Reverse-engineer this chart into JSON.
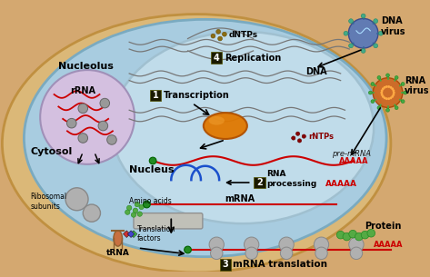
{
  "background_color": "#d4a870",
  "cell_outer_color": "#e8c88a",
  "cell_blue_color": "#a8cce0",
  "nucleus_color": "#b8d8e8",
  "nucleolus_color": "#d0c0e0",
  "dna_color": "#555555",
  "rna_color": "#cc0000",
  "mrna_color": "#cc0000",
  "ribosome_color": "#aaaaaa",
  "rnap_color": "#e07800",
  "green_dot_color": "#228b22",
  "virus_dna_color": "#4466aa",
  "virus_rna_color": "#cc6600",
  "labels": {
    "nucleolus": "Nucleolus",
    "nucleus": "Nucleus",
    "cytosol": "Cytosol",
    "rRNA": "rRNA",
    "ribosomal_subunits": "Ribosomal\nsubunits",
    "amino_acids": "Amino acids",
    "tRNA": "tRNA",
    "translation_factors": "Translation\nfactors",
    "mRNA": "mRNA",
    "dNTPs": "dNTPs",
    "rNTPs": "rNTPs",
    "DNA": "DNA",
    "pre_mRNA": "pre-mRNA",
    "AAAAA": "AAAAA",
    "protein": "Protein",
    "replication": "Replication",
    "transcription": "Transcription",
    "rna_processing": "RNA\nprocessing",
    "mrna_translation": "mRNA translation",
    "dna_virus": "DNA\nvirus",
    "rna_virus": "RNA\nvirus"
  }
}
